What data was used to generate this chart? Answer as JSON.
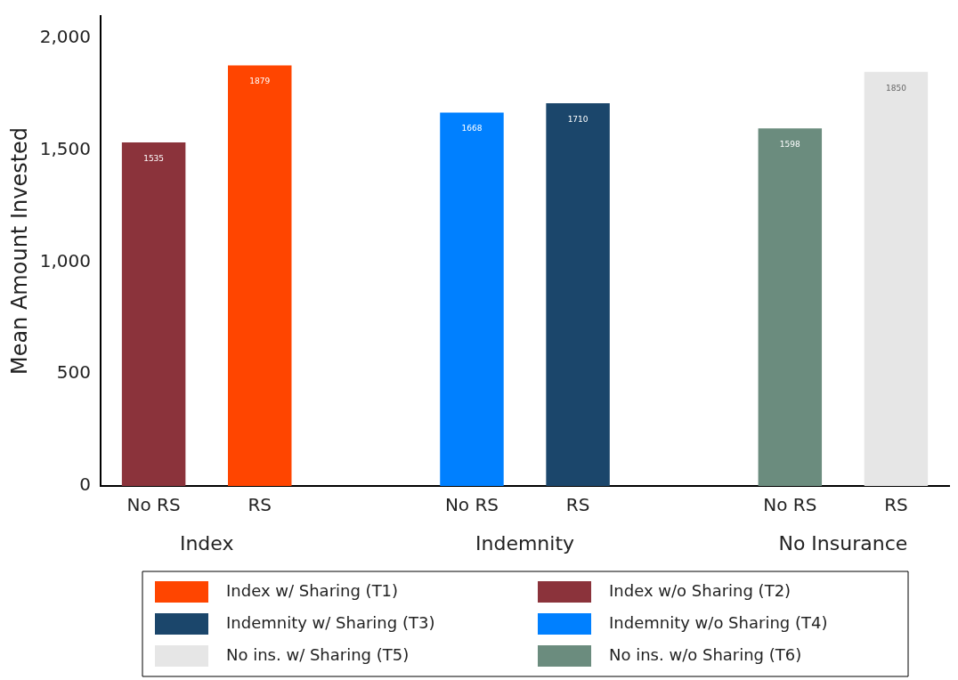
{
  "chart_data": {
    "type": "bar",
    "ylabel": "Mean Amount Invested",
    "categories": [
      "No RS",
      "RS",
      null,
      "No RS",
      "RS",
      null,
      "No RS",
      "RS"
    ],
    "series": [
      {
        "name": "Index w/ Sharing (T1)",
        "color": "#ff4500",
        "values": [
          null,
          1879,
          null,
          null,
          null,
          null,
          null,
          null
        ]
      },
      {
        "name": "Index w/o Sharing (T2)",
        "color": "#8b333b",
        "values": [
          1535,
          null,
          null,
          null,
          null,
          null,
          null,
          null
        ]
      },
      {
        "name": "Indemnity w/ Sharing (T3)",
        "color": "#1b466b",
        "values": [
          null,
          null,
          null,
          null,
          1710,
          null,
          null,
          null
        ]
      },
      {
        "name": "Indemnity w/o Sharing (T4)",
        "color": "#0080ff",
        "values": [
          null,
          null,
          null,
          1668,
          null,
          null,
          null,
          null
        ]
      },
      {
        "name": "No ins. w/ Sharing (T5)",
        "color": "#e6e6e6",
        "values": [
          null,
          null,
          null,
          null,
          null,
          null,
          null,
          1850
        ]
      },
      {
        "name": "No ins. w/o Sharing (T6)",
        "color": "#6b8c7e",
        "values": [
          null,
          null,
          null,
          null,
          null,
          null,
          1598,
          null
        ]
      }
    ],
    "annotations": [
      "Index",
      "Indemnity",
      "No Insurance"
    ],
    "ylim": [
      0,
      2100
    ],
    "yticks": [
      0,
      500,
      {
        "value": 1000,
        "label": "1,000"
      },
      {
        "value": 1500,
        "label": "1,500"
      },
      {
        "value": 2000,
        "label": "2,000"
      }
    ],
    "grid": false,
    "legend": "bottom",
    "data_labels": true
  }
}
